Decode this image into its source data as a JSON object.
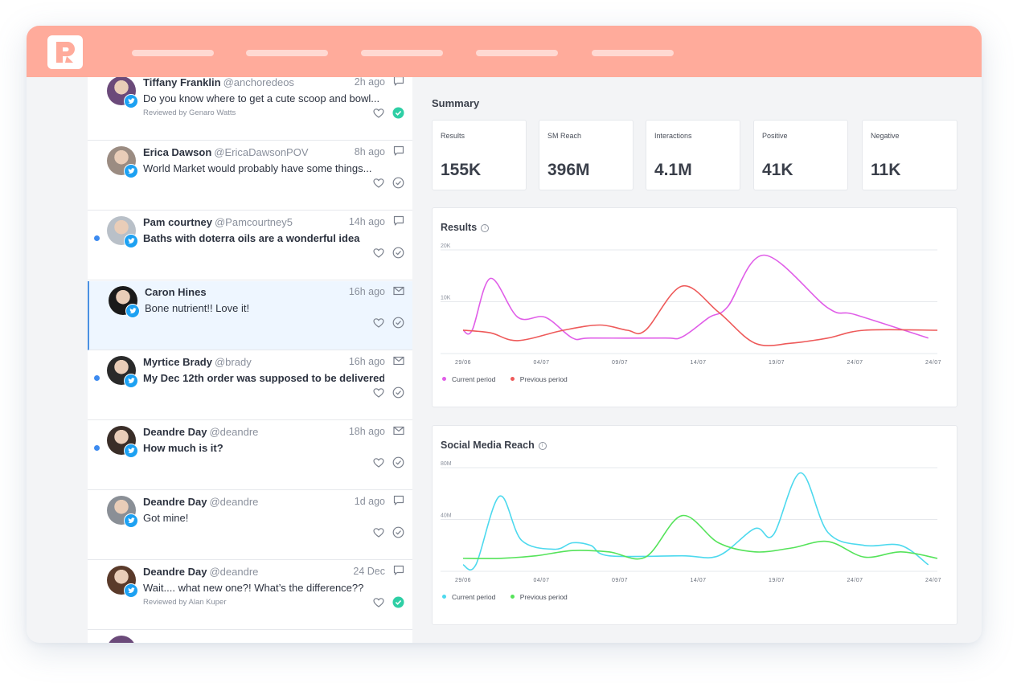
{
  "app": {
    "logo_icon": "r-logo-icon",
    "nav_items": [
      "",
      "",
      "",
      "",
      ""
    ]
  },
  "colors": {
    "topbar": "#ffab9b",
    "twitter": "#1da1f2",
    "current_results": "#e05ee8",
    "previous_results": "#ee5a5a",
    "current_reach": "#4dd9ee",
    "previous_reach": "#55e35a",
    "reviewed_check": "#2ecfa5"
  },
  "feed": {
    "posts": [
      {
        "author": "Tiffany Franklin",
        "handle": "@anchoredeos",
        "time": "2h ago",
        "text": "Do you know where to get a cute scoop and bowl...",
        "reviewed": "Reviewed by Genaro Watts",
        "type_icon": "comment-icon",
        "unread": false,
        "bold": false,
        "selected": false,
        "checked": true
      },
      {
        "author": "Erica Dawson",
        "handle": "@EricaDawsonPOV",
        "time": "8h ago",
        "text": "World Market would probably have some things...",
        "reviewed": "",
        "type_icon": "comment-icon",
        "unread": false,
        "bold": false,
        "selected": false,
        "checked": false
      },
      {
        "author": "Pam courtney",
        "handle": "@Pamcourtney5",
        "time": "14h ago",
        "text": "Baths with doterra oils are a wonderful idea",
        "reviewed": "",
        "type_icon": "comment-icon",
        "unread": true,
        "bold": true,
        "selected": false,
        "checked": false
      },
      {
        "author": "Caron Hines",
        "handle": "",
        "time": "16h ago",
        "text": "Bone nutrient!! Love it!",
        "reviewed": "",
        "type_icon": "mail-icon",
        "unread": false,
        "bold": false,
        "selected": true,
        "checked": false
      },
      {
        "author": "Myrtice Brady",
        "handle": "@brady",
        "time": "16h ago",
        "text": "My Dec 12th order was supposed to be delivered...",
        "reviewed": "",
        "type_icon": "mail-icon",
        "unread": true,
        "bold": true,
        "selected": false,
        "checked": false
      },
      {
        "author": "Deandre Day",
        "handle": "@deandre",
        "time": "18h ago",
        "text": "How much is it?",
        "reviewed": "",
        "type_icon": "mail-icon",
        "unread": true,
        "bold": true,
        "selected": false,
        "checked": false
      },
      {
        "author": "Deandre Day",
        "handle": "@deandre",
        "time": "1d ago",
        "text": "Got mine!",
        "reviewed": "",
        "type_icon": "comment-icon",
        "unread": false,
        "bold": false,
        "selected": false,
        "checked": false
      },
      {
        "author": "Deandre Day",
        "handle": "@deandre",
        "time": "24 Dec",
        "text": "Wait.... what new one?! What’s the difference??",
        "reviewed": "Reviewed by Alan Kuper",
        "type_icon": "comment-icon",
        "unread": false,
        "bold": false,
        "selected": false,
        "checked": true
      }
    ]
  },
  "summary": {
    "title": "Summary",
    "metrics": [
      {
        "label": "Results",
        "value": "155K"
      },
      {
        "label": "SM Reach",
        "value": "396M"
      },
      {
        "label": "Interactions",
        "value": "4.1M"
      },
      {
        "label": "Positive",
        "value": "41K"
      },
      {
        "label": "Negative",
        "value": "11K"
      }
    ]
  },
  "chart_data": [
    {
      "type": "line",
      "title": "Results",
      "x": [
        "29/06",
        "04/07",
        "09/07",
        "14/07",
        "19/07",
        "24/07"
      ],
      "tick_labels_x": [
        "29/06",
        "04/07",
        "09/07",
        "14/07",
        "19/07",
        "24/07",
        "24/07"
      ],
      "tick_labels_y": [
        "20K",
        "10K"
      ],
      "ylim": [
        0,
        20000
      ],
      "series": [
        {
          "name": "Current period",
          "color": "#e05ee8",
          "points": [
            [
              0,
              4500
            ],
            [
              0.5,
              4500
            ],
            [
              1.5,
              14500
            ],
            [
              3,
              7000
            ],
            [
              4.5,
              7000
            ],
            [
              6,
              3000
            ],
            [
              7,
              3000
            ],
            [
              11,
              3000
            ],
            [
              12,
              3200
            ],
            [
              13.5,
              7000
            ],
            [
              14.5,
              9000
            ],
            [
              16.5,
              19000
            ],
            [
              20,
              8800
            ],
            [
              21.5,
              7500
            ],
            [
              25.5,
              3000
            ]
          ]
        },
        {
          "name": "Previous period",
          "color": "#ee5a5a",
          "points": [
            [
              0,
              4500
            ],
            [
              1.5,
              4000
            ],
            [
              3,
              2500
            ],
            [
              5.5,
              4500
            ],
            [
              7.5,
              5500
            ],
            [
              9,
              4500
            ],
            [
              10,
              4500
            ],
            [
              12,
              13000
            ],
            [
              14,
              8000
            ],
            [
              16,
              2000
            ],
            [
              18,
              2000
            ],
            [
              20,
              3000
            ],
            [
              22,
              4500
            ],
            [
              26,
              4500
            ]
          ]
        }
      ],
      "legend": "bottom-left",
      "grid": true
    },
    {
      "type": "line",
      "title": "Social Media Reach",
      "x": [
        "29/06",
        "04/07",
        "09/07",
        "14/07",
        "19/07",
        "24/07"
      ],
      "tick_labels_x": [
        "29/06",
        "04/07",
        "09/07",
        "14/07",
        "19/07",
        "24/07",
        "24/07"
      ],
      "tick_labels_y": [
        "80M",
        "40M"
      ],
      "ylim": [
        0,
        80000000
      ],
      "series": [
        {
          "name": "Current period",
          "color": "#4dd9ee",
          "points": [
            [
              0,
              5000000
            ],
            [
              0.7,
              5000000
            ],
            [
              2,
              58000000
            ],
            [
              3.2,
              24000000
            ],
            [
              5,
              17000000
            ],
            [
              6,
              22000000
            ],
            [
              7,
              20000000
            ],
            [
              8,
              12000000
            ],
            [
              12,
              12000000
            ],
            [
              14,
              12000000
            ],
            [
              16,
              33000000
            ],
            [
              17,
              28000000
            ],
            [
              18.5,
              76000000
            ],
            [
              20,
              30000000
            ],
            [
              22,
              20000000
            ],
            [
              24,
              20000000
            ],
            [
              25.5,
              5000000
            ]
          ]
        },
        {
          "name": "Previous period",
          "color": "#55e35a",
          "points": [
            [
              0,
              10000000
            ],
            [
              2,
              10000000
            ],
            [
              4,
              12000000
            ],
            [
              6,
              16000000
            ],
            [
              8,
              15000000
            ],
            [
              10,
              11000000
            ],
            [
              12,
              43000000
            ],
            [
              14,
              22000000
            ],
            [
              16,
              15000000
            ],
            [
              18,
              18000000
            ],
            [
              20,
              23000000
            ],
            [
              22,
              11000000
            ],
            [
              24,
              15000000
            ],
            [
              26,
              10000000
            ]
          ]
        }
      ],
      "legend": "bottom-left",
      "grid": true
    }
  ]
}
